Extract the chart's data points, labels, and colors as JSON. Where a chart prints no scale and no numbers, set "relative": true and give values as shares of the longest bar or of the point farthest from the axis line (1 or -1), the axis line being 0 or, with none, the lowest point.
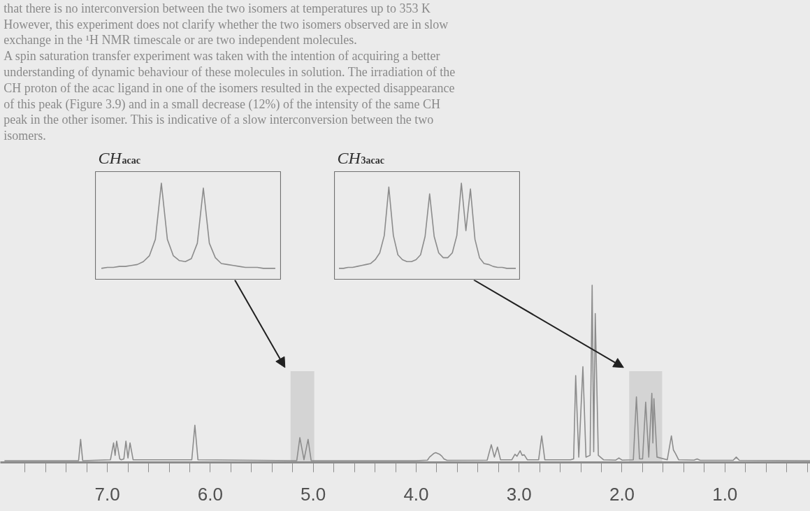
{
  "chart_data": [
    {
      "type": "line",
      "color": "#8c8c8c",
      "relative": true,
      "tick_labels": "x",
      "xlim": [
        8.04,
        0.17
      ],
      "xticks": [
        {
          "value": 7.8,
          "label": null
        },
        {
          "value": 7.6,
          "label": null
        },
        {
          "value": 7.4,
          "label": null
        },
        {
          "value": 7.2,
          "label": null
        },
        {
          "value": 7.0,
          "label": "7.0"
        },
        {
          "value": 6.8,
          "label": null
        },
        {
          "value": 6.6,
          "label": null
        },
        {
          "value": 6.4,
          "label": null
        },
        {
          "value": 6.2,
          "label": null
        },
        {
          "value": 6.0,
          "label": "6.0"
        },
        {
          "value": 5.8,
          "label": null
        },
        {
          "value": 5.6,
          "label": null
        },
        {
          "value": 5.4,
          "label": null
        },
        {
          "value": 5.2,
          "label": null
        },
        {
          "value": 5.0,
          "label": "5.0"
        },
        {
          "value": 4.8,
          "label": null
        },
        {
          "value": 4.6,
          "label": null
        },
        {
          "value": 4.4,
          "label": null
        },
        {
          "value": 4.2,
          "label": null
        },
        {
          "value": 4.0,
          "label": "4.0"
        },
        {
          "value": 3.8,
          "label": null
        },
        {
          "value": 3.6,
          "label": null
        },
        {
          "value": 3.4,
          "label": null
        },
        {
          "value": 3.2,
          "label": null
        },
        {
          "value": 3.0,
          "label": "3.0"
        },
        {
          "value": 2.8,
          "label": null
        },
        {
          "value": 2.6,
          "label": null
        },
        {
          "value": 2.4,
          "label": null
        },
        {
          "value": 2.2,
          "label": null
        },
        {
          "value": 2.0,
          "label": "2.0"
        },
        {
          "value": 1.8,
          "label": null
        },
        {
          "value": 1.6,
          "label": null
        },
        {
          "value": 1.4,
          "label": null
        },
        {
          "value": 1.2,
          "label": null
        },
        {
          "value": 1.0,
          "label": "1.0"
        },
        {
          "value": 0.8,
          "label": null
        },
        {
          "value": 0.6,
          "label": null
        },
        {
          "value": 0.4,
          "label": null
        },
        {
          "value": 0.2,
          "label": null
        }
      ],
      "x": [
        8.0,
        7.28,
        7.26,
        7.24,
        6.97,
        6.94,
        6.925,
        6.91,
        6.88,
        6.865,
        6.84,
        6.82,
        6.8,
        6.78,
        6.75,
        6.18,
        6.15,
        6.12,
        5.16,
        5.13,
        5.09,
        5.05,
        5.02,
        4.0,
        3.89,
        3.87,
        3.85,
        3.83,
        3.81,
        3.79,
        3.77,
        3.75,
        3.73,
        3.7,
        3.31,
        3.27,
        3.24,
        3.21,
        3.18,
        3.07,
        3.04,
        3.02,
        2.99,
        2.97,
        2.95,
        2.92,
        2.81,
        2.78,
        2.75,
        2.5,
        2.47,
        2.45,
        2.42,
        2.38,
        2.35,
        2.31,
        2.29,
        2.275,
        2.26,
        2.23,
        2.18,
        2.06,
        2.03,
        2.0,
        1.89,
        1.86,
        1.83,
        1.8,
        1.77,
        1.74,
        1.71,
        1.7,
        1.69,
        1.66,
        1.56,
        1.52,
        1.5,
        1.48,
        1.45,
        1.3,
        1.27,
        1.24,
        0.92,
        0.89,
        0.86,
        0.17
      ],
      "values": [
        0.01,
        0.01,
        0.13,
        0.01,
        0.015,
        0.11,
        0.04,
        0.12,
        0.02,
        0.015,
        0.02,
        0.12,
        0.025,
        0.11,
        0.015,
        0.015,
        0.21,
        0.015,
        0.01,
        0.14,
        0.015,
        0.13,
        0.01,
        0.01,
        0.013,
        0.03,
        0.04,
        0.05,
        0.055,
        0.05,
        0.045,
        0.035,
        0.02,
        0.012,
        0.013,
        0.1,
        0.03,
        0.087,
        0.015,
        0.015,
        0.046,
        0.035,
        0.066,
        0.04,
        0.043,
        0.015,
        0.015,
        0.15,
        0.015,
        0.015,
        0.02,
        0.49,
        0.03,
        0.54,
        0.03,
        0.04,
        1.0,
        0.06,
        0.84,
        0.04,
        0.015,
        0.013,
        0.025,
        0.013,
        0.015,
        0.37,
        0.02,
        0.02,
        0.34,
        0.03,
        0.39,
        0.11,
        0.36,
        0.03,
        0.015,
        0.15,
        0.07,
        0.05,
        0.015,
        0.013,
        0.02,
        0.012,
        0.012,
        0.03,
        0.012,
        0.01
      ],
      "bands": [
        {
          "axis": "x",
          "from": 5.22,
          "to": 4.99,
          "color": "#c4c4c4"
        },
        {
          "axis": "x",
          "from": 1.93,
          "to": 1.61,
          "color": "#c4c4c4"
        }
      ],
      "annotations": [
        "that there is no interconversion between the two isomers at temperatures up to 353 K",
        "However, this experiment does not clarify whether the two isomers observed are in slow",
        "exchange in the ¹H NMR timescale or are two independent molecules.",
        "A spin saturation transfer experiment was taken with the intention of acquiring a better",
        "understanding of dynamic behaviour of these molecules in solution. The irradiation of the",
        "CH proton of the acac ligand in one of the isomers resulted in the expected disappearance",
        "of this peak (Figure 3.9) and in a small decrease (12%) of the intensity of the same CH",
        "peak in the other isomer. This is indicative of a slow interconversion between the two",
        "isomers."
      ]
    },
    {
      "type": "line",
      "title": "CH$_{acac}$",
      "color": "#8c8c8c",
      "relative": true,
      "categories": [
        null,
        null,
        null,
        null,
        null,
        null,
        null,
        null,
        null,
        null,
        null,
        null,
        null,
        null,
        null,
        null,
        null,
        null,
        null,
        null,
        null,
        null,
        null,
        null,
        null,
        null,
        null,
        null,
        null,
        null
      ],
      "values": [
        0.12,
        0.13,
        0.13,
        0.14,
        0.14,
        0.15,
        0.16,
        0.19,
        0.25,
        0.42,
        1.0,
        0.42,
        0.25,
        0.2,
        0.19,
        0.22,
        0.38,
        0.95,
        0.38,
        0.23,
        0.17,
        0.16,
        0.15,
        0.14,
        0.13,
        0.13,
        0.13,
        0.12,
        0.12,
        0.12
      ]
    },
    {
      "type": "line",
      "title": "CH$_{3acac}$",
      "color": "#8c8c8c",
      "relative": true,
      "categories": [
        null,
        null,
        null,
        null,
        null,
        null,
        null,
        null,
        null,
        null,
        null,
        null,
        null,
        null,
        null,
        null,
        null,
        null,
        null,
        null,
        null,
        null,
        null,
        null,
        null,
        null,
        null,
        null,
        null,
        null,
        null,
        null,
        null,
        null,
        null,
        null,
        null,
        null,
        null,
        null
      ],
      "values": [
        0.12,
        0.12,
        0.13,
        0.13,
        0.14,
        0.15,
        0.16,
        0.17,
        0.21,
        0.28,
        0.46,
        0.96,
        0.46,
        0.26,
        0.21,
        0.19,
        0.19,
        0.21,
        0.26,
        0.45,
        0.89,
        0.45,
        0.28,
        0.23,
        0.23,
        0.28,
        0.46,
        1.0,
        0.51,
        0.94,
        0.42,
        0.23,
        0.17,
        0.16,
        0.14,
        0.13,
        0.13,
        0.12,
        0.12,
        0.12
      ]
    }
  ]
}
